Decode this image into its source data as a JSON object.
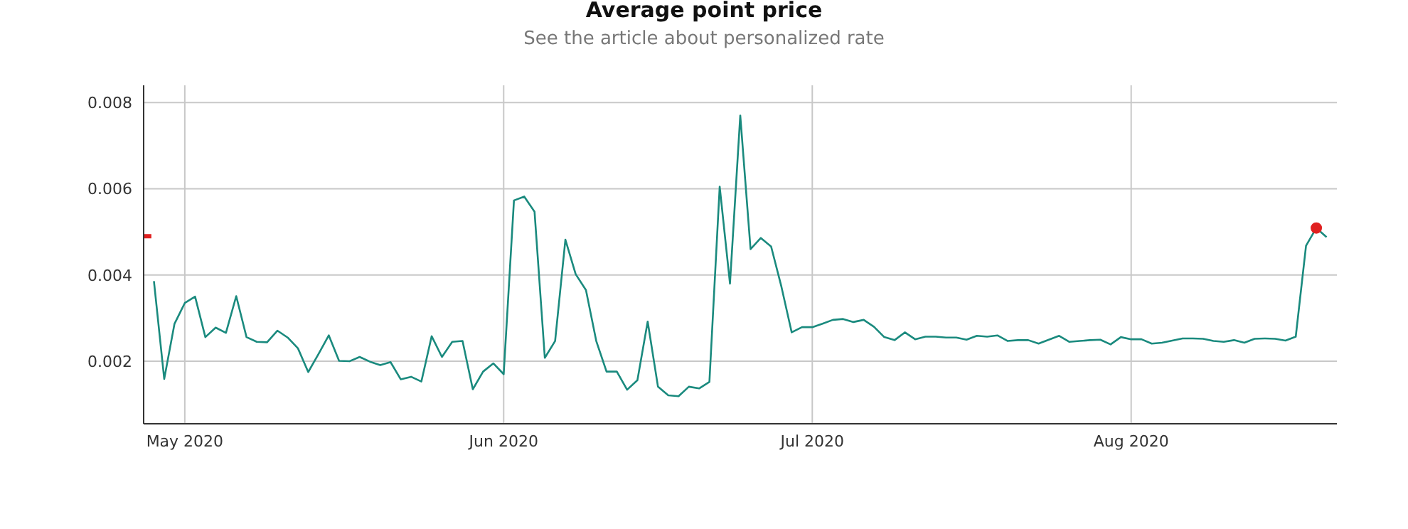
{
  "chart_data": {
    "type": "line",
    "title": "Average point price",
    "subtitle": "See the article about personalized rate",
    "x": [
      "2020-04-28",
      "2020-04-29",
      "2020-04-30",
      "2020-05-01",
      "2020-05-02",
      "2020-05-03",
      "2020-05-04",
      "2020-05-05",
      "2020-05-06",
      "2020-05-07",
      "2020-05-08",
      "2020-05-09",
      "2020-05-10",
      "2020-05-11",
      "2020-05-12",
      "2020-05-13",
      "2020-05-14",
      "2020-05-15",
      "2020-05-16",
      "2020-05-17",
      "2020-05-18",
      "2020-05-19",
      "2020-05-20",
      "2020-05-21",
      "2020-05-22",
      "2020-05-23",
      "2020-05-24",
      "2020-05-25",
      "2020-05-26",
      "2020-05-27",
      "2020-05-28",
      "2020-05-29",
      "2020-05-30",
      "2020-05-31",
      "2020-06-01",
      "2020-06-02",
      "2020-06-03",
      "2020-06-04",
      "2020-06-05",
      "2020-06-06",
      "2020-06-07",
      "2020-06-08",
      "2020-06-09",
      "2020-06-10",
      "2020-06-11",
      "2020-06-12",
      "2020-06-13",
      "2020-06-14",
      "2020-06-15",
      "2020-06-16",
      "2020-06-17",
      "2020-06-18",
      "2020-06-19",
      "2020-06-20",
      "2020-06-21",
      "2020-06-22",
      "2020-06-23",
      "2020-06-24",
      "2020-06-25",
      "2020-06-26",
      "2020-06-27",
      "2020-06-28",
      "2020-06-29",
      "2020-06-30",
      "2020-07-01",
      "2020-07-02",
      "2020-07-03",
      "2020-07-04",
      "2020-07-05",
      "2020-07-06",
      "2020-07-07",
      "2020-07-08",
      "2020-07-09",
      "2020-07-10",
      "2020-07-11",
      "2020-07-12",
      "2020-07-13",
      "2020-07-14",
      "2020-07-15",
      "2020-07-16",
      "2020-07-17",
      "2020-07-18",
      "2020-07-19",
      "2020-07-20",
      "2020-07-21",
      "2020-07-22",
      "2020-07-23",
      "2020-07-24",
      "2020-07-25",
      "2020-07-26",
      "2020-07-27",
      "2020-07-28",
      "2020-07-29",
      "2020-07-30",
      "2020-07-31",
      "2020-08-01",
      "2020-08-02",
      "2020-08-03",
      "2020-08-04",
      "2020-08-05",
      "2020-08-06",
      "2020-08-07",
      "2020-08-08",
      "2020-08-09",
      "2020-08-10",
      "2020-08-11",
      "2020-08-12",
      "2020-08-13",
      "2020-08-14",
      "2020-08-15",
      "2020-08-16",
      "2020-08-17",
      "2020-08-18",
      "2020-08-19",
      "2020-08-20"
    ],
    "series": [
      {
        "color": "#1a8a7e",
        "values": [
          0.00386,
          0.00159,
          0.00287,
          0.00335,
          0.0035,
          0.00256,
          0.00278,
          0.00266,
          0.00351,
          0.00256,
          0.00245,
          0.00244,
          0.00271,
          0.00255,
          0.0023,
          0.00175,
          0.00217,
          0.0026,
          0.00201,
          0.002,
          0.0021,
          0.00199,
          0.00191,
          0.00198,
          0.00158,
          0.00164,
          0.00153,
          0.00258,
          0.0021,
          0.00245,
          0.00247,
          0.00135,
          0.00176,
          0.00195,
          0.0017,
          0.00573,
          0.00582,
          0.00547,
          0.00208,
          0.00247,
          0.00482,
          0.00402,
          0.00365,
          0.00247,
          0.00176,
          0.00176,
          0.00134,
          0.00156,
          0.00292,
          0.00141,
          0.00121,
          0.00119,
          0.00141,
          0.00137,
          0.00152,
          0.00605,
          0.0038,
          0.0077,
          0.0046,
          0.00486,
          0.00466,
          0.00373,
          0.00267,
          0.00279,
          0.00279,
          0.00287,
          0.00296,
          0.00298,
          0.00291,
          0.00296,
          0.0028,
          0.00256,
          0.00249,
          0.00267,
          0.00251,
          0.00257,
          0.00257,
          0.00255,
          0.00255,
          0.0025,
          0.00259,
          0.00257,
          0.0026,
          0.00247,
          0.00249,
          0.00249,
          0.00241,
          0.0025,
          0.00259,
          0.00245,
          0.00247,
          0.00249,
          0.0025,
          0.00239,
          0.00256,
          0.00251,
          0.00251,
          0.00241,
          0.00243,
          0.00248,
          0.00253,
          0.00253,
          0.00252,
          0.00247,
          0.00245,
          0.00249,
          0.00243,
          0.00252,
          0.00253,
          0.00252,
          0.00248,
          0.00257,
          0.00468,
          0.00509,
          0.00488
        ]
      },
      {
        "type": "scatter",
        "color": "#e02020",
        "marker": "circle",
        "x": [
          "2020-08-19"
        ],
        "values": [
          0.00509
        ]
      },
      {
        "type": "line",
        "color": "#e02020",
        "x": [
          "2020-04-27",
          "2020-04-27T18:00"
        ],
        "values": [
          0.0049,
          0.0049
        ]
      }
    ],
    "xlim": [
      "2020-04-27",
      "2020-08-21"
    ],
    "xticks": [
      {
        "value": "2020-05-01",
        "label": "May 2020"
      },
      {
        "value": "2020-06-01",
        "label": "Jun 2020"
      },
      {
        "value": "2020-07-01",
        "label": "Jul 2020"
      },
      {
        "value": "2020-08-01",
        "label": "Aug 2020"
      }
    ],
    "ylim": [
      0.00055,
      0.0084
    ],
    "yticks": [
      0.002,
      0.004,
      0.006,
      0.008
    ],
    "grid": true
  }
}
